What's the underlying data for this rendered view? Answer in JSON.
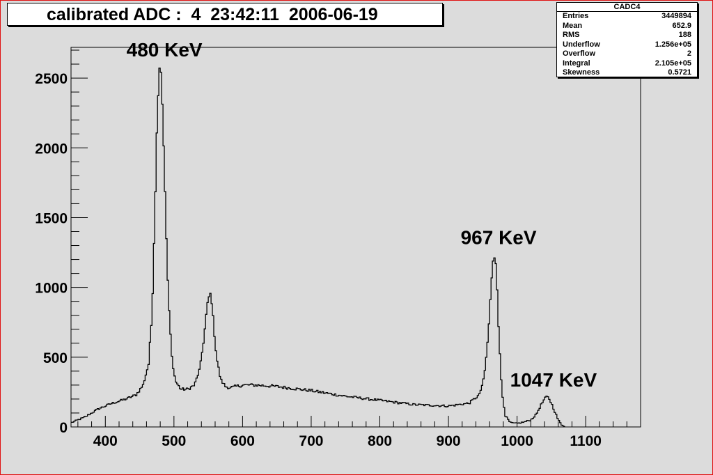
{
  "title": "calibrated ADC :  4  23:42:11  2006-06-19",
  "stats": {
    "name": "CADC4",
    "rows": [
      {
        "label": "Entries",
        "value": "3449894"
      },
      {
        "label": "Mean",
        "value": "652.9"
      },
      {
        "label": "RMS",
        "value": "188"
      },
      {
        "label": "Underflow",
        "value": "1.256e+05"
      },
      {
        "label": "Overflow",
        "value": "2"
      },
      {
        "label": "Integral",
        "value": "2.105e+05"
      },
      {
        "label": "Skewness",
        "value": "0.5721"
      }
    ]
  },
  "chart_data": {
    "type": "line",
    "xlim": [
      350,
      1180
    ],
    "ylim": [
      0,
      2720
    ],
    "x_ticks": [
      400,
      500,
      600,
      700,
      800,
      900,
      1000,
      1100
    ],
    "y_ticks": [
      0,
      500,
      1000,
      1500,
      2000,
      2500
    ],
    "x_tick_labels": [
      "400",
      "500",
      "600",
      "700",
      "800",
      "900",
      "1000",
      "1100"
    ],
    "y_tick_labels": [
      "0",
      "500",
      "1000",
      "1500",
      "2000",
      "2500"
    ],
    "grid": false,
    "series": [
      {
        "x": [
          350,
          370,
          390,
          410,
          430,
          445,
          455,
          463,
          468,
          472,
          476,
          479,
          481,
          484,
          488,
          492,
          497,
          502,
          510,
          520,
          530,
          538,
          544,
          548,
          551,
          553,
          555,
          558,
          562,
          568,
          575,
          582,
          590,
          600,
          620,
          650,
          700,
          750,
          800,
          850,
          900,
          930,
          945,
          952,
          958,
          962,
          965,
          967,
          969,
          971,
          974,
          978,
          983,
          990,
          1000,
          1010,
          1020,
          1028,
          1034,
          1040,
          1043,
          1046,
          1050,
          1055,
          1060,
          1065,
          1070
        ],
        "y": [
          30,
          70,
          130,
          170,
          200,
          230,
          300,
          450,
          800,
          1500,
          2300,
          2580,
          2550,
          2200,
          1500,
          900,
          500,
          330,
          270,
          270,
          300,
          420,
          650,
          850,
          930,
          950,
          900,
          720,
          500,
          340,
          290,
          280,
          290,
          300,
          300,
          290,
          260,
          220,
          190,
          160,
          150,
          170,
          230,
          350,
          650,
          1000,
          1180,
          1220,
          1180,
          1000,
          600,
          250,
          80,
          30,
          25,
          35,
          50,
          90,
          150,
          200,
          215,
          210,
          170,
          110,
          50,
          15,
          5
        ]
      }
    ],
    "annotations": [
      {
        "text": "480 KeV",
        "x": 480
      },
      {
        "text": "967 KeV",
        "x": 967
      },
      {
        "text": "1047 KeV",
        "x": 1047
      }
    ]
  }
}
